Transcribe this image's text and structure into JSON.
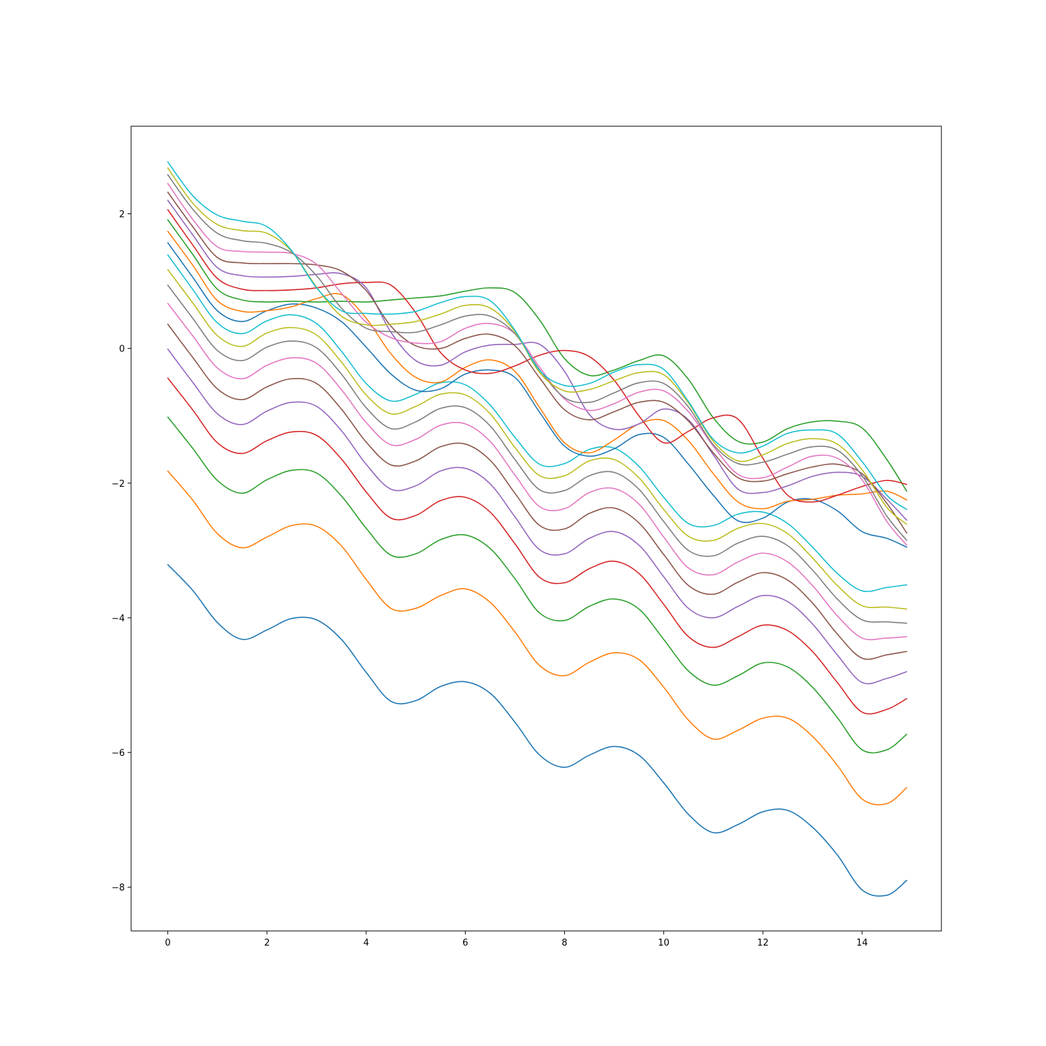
{
  "chart_data": {
    "type": "line",
    "title": "",
    "xlabel": "",
    "ylabel": "",
    "xlim": [
      -0.74,
      15.6
    ],
    "ylim": [
      -8.65,
      3.3
    ],
    "grid": false,
    "legend": "none",
    "x_ticks": [
      {
        "value": 0,
        "label": "0"
      },
      {
        "value": 2,
        "label": "2"
      },
      {
        "value": 4,
        "label": "4"
      },
      {
        "value": 6,
        "label": "6"
      },
      {
        "value": 8,
        "label": "8"
      },
      {
        "value": 10,
        "label": "10"
      },
      {
        "value": 12,
        "label": "12"
      },
      {
        "value": 14,
        "label": "14"
      }
    ],
    "y_ticks": [
      {
        "value": -8,
        "label": "−8"
      },
      {
        "value": -6,
        "label": "−6"
      },
      {
        "value": -4,
        "label": "−4"
      },
      {
        "value": -2,
        "label": "−2"
      },
      {
        "value": 0,
        "label": "0"
      },
      {
        "value": 2,
        "label": "2"
      }
    ],
    "x": [
      0.0,
      0.5,
      1.0,
      1.5,
      2.0,
      2.5,
      3.0,
      3.5,
      4.0,
      4.5,
      5.0,
      5.5,
      6.0,
      6.5,
      7.0,
      7.5,
      8.0,
      8.5,
      9.0,
      9.5,
      10.0,
      10.5,
      11.0,
      11.5,
      12.0,
      12.5,
      13.0,
      13.5,
      14.0,
      14.5,
      14.9
    ],
    "series": [
      {
        "color": "#1f77b4",
        "values": [
          -3.21,
          -3.59,
          -4.07,
          -4.32,
          -4.18,
          -4.01,
          -4.03,
          -4.32,
          -4.81,
          -5.24,
          -5.23,
          -5.02,
          -4.95,
          -5.12,
          -5.55,
          -6.04,
          -6.22,
          -6.04,
          -5.91,
          -6.04,
          -6.45,
          -6.92,
          -7.19,
          -7.07,
          -6.88,
          -6.86,
          -7.11,
          -7.52,
          -8.04,
          -8.12,
          -7.9
        ]
      },
      {
        "color": "#ff7f0e",
        "values": [
          -1.82,
          -2.25,
          -2.75,
          -2.96,
          -2.8,
          -2.63,
          -2.64,
          -2.93,
          -3.43,
          -3.86,
          -3.86,
          -3.67,
          -3.57,
          -3.77,
          -4.21,
          -4.71,
          -4.86,
          -4.66,
          -4.52,
          -4.62,
          -5.03,
          -5.52,
          -5.8,
          -5.67,
          -5.49,
          -5.49,
          -5.76,
          -6.19,
          -6.69,
          -6.76,
          -6.52
        ]
      },
      {
        "color": "#2ca02c",
        "values": [
          -1.02,
          -1.48,
          -1.96,
          -2.15,
          -1.95,
          -1.81,
          -1.85,
          -2.19,
          -2.67,
          -3.07,
          -3.05,
          -2.84,
          -2.77,
          -2.97,
          -3.42,
          -3.93,
          -4.04,
          -3.83,
          -3.72,
          -3.87,
          -4.32,
          -4.79,
          -5.0,
          -4.86,
          -4.67,
          -4.73,
          -5.03,
          -5.48,
          -5.96,
          -5.96,
          -5.73
        ]
      },
      {
        "color": "#d62728",
        "values": [
          -0.44,
          -0.91,
          -1.4,
          -1.56,
          -1.37,
          -1.24,
          -1.29,
          -1.64,
          -2.13,
          -2.52,
          -2.48,
          -2.26,
          -2.21,
          -2.43,
          -2.9,
          -3.4,
          -3.48,
          -3.27,
          -3.16,
          -3.34,
          -3.8,
          -4.28,
          -4.44,
          -4.28,
          -4.11,
          -4.19,
          -4.5,
          -4.96,
          -5.4,
          -5.36,
          -5.2
        ]
      },
      {
        "color": "#9467bd",
        "values": [
          -0.01,
          -0.5,
          -0.97,
          -1.13,
          -0.93,
          -0.8,
          -0.86,
          -1.22,
          -1.72,
          -2.09,
          -2.04,
          -1.82,
          -1.78,
          -2.01,
          -2.5,
          -2.99,
          -3.05,
          -2.82,
          -2.72,
          -2.92,
          -3.39,
          -3.86,
          -4.0,
          -3.83,
          -3.67,
          -3.76,
          -4.09,
          -4.55,
          -4.96,
          -4.9,
          -4.8
        ]
      },
      {
        "color": "#8c564b",
        "values": [
          0.36,
          -0.13,
          -0.6,
          -0.76,
          -0.57,
          -0.45,
          -0.52,
          -0.9,
          -1.39,
          -1.73,
          -1.67,
          -1.46,
          -1.42,
          -1.66,
          -2.15,
          -2.63,
          -2.68,
          -2.45,
          -2.37,
          -2.59,
          -3.06,
          -3.52,
          -3.65,
          -3.47,
          -3.33,
          -3.44,
          -3.78,
          -4.24,
          -4.6,
          -4.55,
          -4.5
        ]
      },
      {
        "color": "#e377c2",
        "values": [
          0.67,
          0.19,
          -0.29,
          -0.45,
          -0.25,
          -0.14,
          -0.22,
          -0.61,
          -1.1,
          -1.43,
          -1.35,
          -1.14,
          -1.12,
          -1.38,
          -1.88,
          -2.35,
          -2.38,
          -2.14,
          -2.08,
          -2.31,
          -2.8,
          -3.26,
          -3.36,
          -3.17,
          -3.04,
          -3.17,
          -3.52,
          -3.97,
          -4.3,
          -4.3,
          -4.28
        ]
      },
      {
        "color": "#7f7f7f",
        "values": [
          0.94,
          0.45,
          -0.03,
          -0.18,
          0.02,
          0.11,
          0.01,
          -0.38,
          -0.88,
          -1.19,
          -1.09,
          -0.89,
          -0.88,
          -1.15,
          -1.65,
          -2.1,
          -2.11,
          -1.89,
          -1.84,
          -2.09,
          -2.57,
          -3.0,
          -3.08,
          -2.89,
          -2.79,
          -2.93,
          -3.29,
          -3.72,
          -4.03,
          -4.06,
          -4.08
        ]
      },
      {
        "color": "#bcbd22",
        "values": [
          1.17,
          0.68,
          0.19,
          0.03,
          0.23,
          0.31,
          0.2,
          -0.2,
          -0.69,
          -0.97,
          -0.86,
          -0.68,
          -0.69,
          -0.97,
          -1.47,
          -1.89,
          -1.89,
          -1.67,
          -1.65,
          -1.92,
          -2.39,
          -2.79,
          -2.85,
          -2.67,
          -2.6,
          -2.75,
          -3.11,
          -3.52,
          -3.82,
          -3.84,
          -3.87
        ]
      },
      {
        "color": "#17becf",
        "values": [
          1.39,
          0.88,
          0.38,
          0.22,
          0.41,
          0.5,
          0.37,
          -0.04,
          -0.52,
          -0.78,
          -0.68,
          -0.51,
          -0.54,
          -0.84,
          -1.32,
          -1.72,
          -1.71,
          -1.5,
          -1.48,
          -1.75,
          -2.21,
          -2.6,
          -2.63,
          -2.46,
          -2.43,
          -2.6,
          -2.95,
          -3.34,
          -3.6,
          -3.55,
          -3.51
        ]
      },
      {
        "color": "#1f77b4",
        "values": [
          1.57,
          1.06,
          0.56,
          0.4,
          0.56,
          0.66,
          0.6,
          0.4,
          0.02,
          -0.38,
          -0.62,
          -0.6,
          -0.38,
          -0.32,
          -0.43,
          -0.95,
          -1.45,
          -1.6,
          -1.49,
          -1.28,
          -1.32,
          -1.72,
          -2.18,
          -2.56,
          -2.52,
          -2.28,
          -2.24,
          -2.41,
          -2.72,
          -2.82,
          -2.95
        ]
      },
      {
        "color": "#ff7f0e",
        "values": [
          1.74,
          1.24,
          0.71,
          0.55,
          0.56,
          0.62,
          0.74,
          0.8,
          0.45,
          -0.08,
          -0.43,
          -0.5,
          -0.28,
          -0.17,
          -0.34,
          -0.88,
          -1.4,
          -1.55,
          -1.36,
          -1.12,
          -1.07,
          -1.37,
          -1.86,
          -2.28,
          -2.38,
          -2.27,
          -2.24,
          -2.18,
          -2.16,
          -2.12,
          -2.25
        ]
      },
      {
        "color": "#2ca02c",
        "values": [
          1.91,
          1.4,
          0.88,
          0.72,
          0.69,
          0.7,
          0.69,
          0.7,
          0.69,
          0.72,
          0.75,
          0.78,
          0.85,
          0.9,
          0.83,
          0.42,
          -0.15,
          -0.4,
          -0.32,
          -0.18,
          -0.11,
          -0.46,
          -1.03,
          -1.38,
          -1.39,
          -1.19,
          -1.09,
          -1.08,
          -1.18,
          -1.65,
          -2.12
        ]
      },
      {
        "color": "#d62728",
        "values": [
          2.06,
          1.54,
          1.04,
          0.88,
          0.86,
          0.87,
          0.9,
          0.96,
          0.98,
          0.94,
          0.53,
          -0.06,
          -0.32,
          -0.37,
          -0.26,
          -0.1,
          -0.03,
          -0.12,
          -0.47,
          -1.0,
          -1.4,
          -1.23,
          -1.03,
          -1.05,
          -1.63,
          -2.18,
          -2.28,
          -2.18,
          -2.05,
          -1.96,
          -2.02
        ]
      },
      {
        "color": "#9467bd",
        "values": [
          2.2,
          1.69,
          1.2,
          1.08,
          1.06,
          1.07,
          1.1,
          1.11,
          0.9,
          0.24,
          -0.18,
          -0.25,
          -0.05,
          0.05,
          0.06,
          0.06,
          -0.34,
          -0.98,
          -1.2,
          -1.12,
          -0.9,
          -1.06,
          -1.58,
          -2.09,
          -2.14,
          -2.04,
          -1.9,
          -1.84,
          -1.9,
          -2.24,
          -2.55
        ]
      },
      {
        "color": "#8c564b",
        "values": [
          2.32,
          1.81,
          1.35,
          1.27,
          1.26,
          1.26,
          1.24,
          1.15,
          0.86,
          0.33,
          0.04,
          0.0,
          0.15,
          0.21,
          0.04,
          -0.44,
          -0.91,
          -1.06,
          -0.94,
          -0.8,
          -0.8,
          -1.08,
          -1.55,
          -1.92,
          -1.97,
          -1.86,
          -1.76,
          -1.72,
          -1.86,
          -2.3,
          -2.74
        ]
      },
      {
        "color": "#e377c2",
        "values": [
          2.45,
          1.92,
          1.51,
          1.44,
          1.43,
          1.41,
          1.25,
          0.82,
          0.39,
          0.16,
          0.08,
          0.1,
          0.3,
          0.37,
          0.22,
          -0.28,
          -0.75,
          -0.92,
          -0.82,
          -0.65,
          -0.63,
          -0.94,
          -1.45,
          -1.87,
          -1.92,
          -1.76,
          -1.6,
          -1.63,
          -1.95,
          -2.57,
          -2.92
        ]
      },
      {
        "color": "#7f7f7f",
        "values": [
          2.58,
          2.07,
          1.71,
          1.6,
          1.56,
          1.42,
          1.08,
          0.6,
          0.3,
          0.25,
          0.24,
          0.35,
          0.48,
          0.48,
          0.22,
          -0.32,
          -0.73,
          -0.8,
          -0.66,
          -0.51,
          -0.52,
          -0.87,
          -1.43,
          -1.71,
          -1.69,
          -1.57,
          -1.46,
          -1.51,
          -1.89,
          -2.49,
          -2.85
        ]
      },
      {
        "color": "#bcbd22",
        "values": [
          2.68,
          2.16,
          1.84,
          1.75,
          1.71,
          1.44,
          0.91,
          0.48,
          0.35,
          0.36,
          0.4,
          0.51,
          0.64,
          0.6,
          0.25,
          -0.36,
          -0.63,
          -0.61,
          -0.48,
          -0.36,
          -0.39,
          -0.81,
          -1.38,
          -1.67,
          -1.58,
          -1.41,
          -1.34,
          -1.42,
          -1.8,
          -2.36,
          -2.61
        ]
      },
      {
        "color": "#17becf",
        "values": [
          2.77,
          2.27,
          1.98,
          1.89,
          1.81,
          1.45,
          0.9,
          0.56,
          0.52,
          0.51,
          0.55,
          0.68,
          0.77,
          0.71,
          0.27,
          -0.33,
          -0.55,
          -0.52,
          -0.35,
          -0.24,
          -0.31,
          -0.79,
          -1.35,
          -1.55,
          -1.45,
          -1.26,
          -1.21,
          -1.27,
          -1.68,
          -2.18,
          -2.39
        ]
      }
    ]
  }
}
